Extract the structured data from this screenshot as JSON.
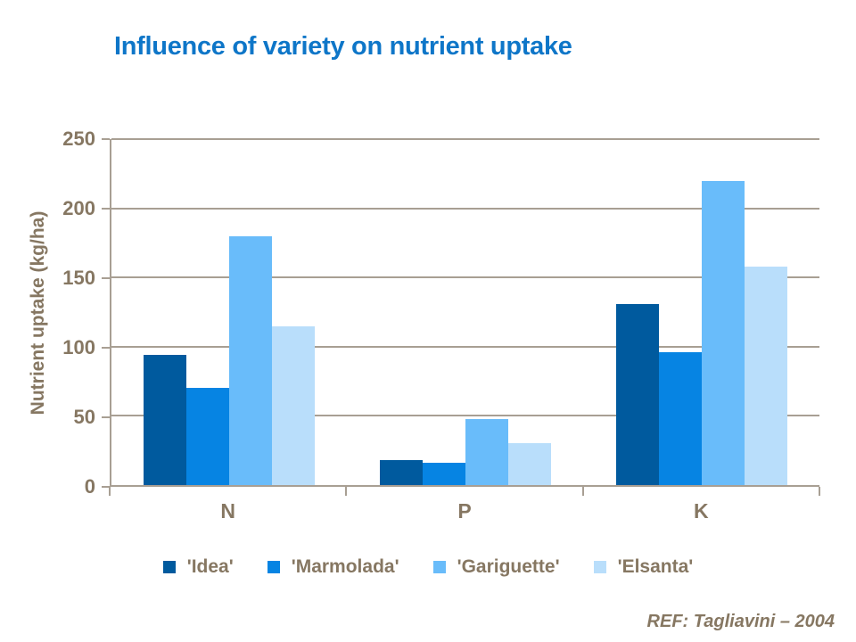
{
  "slide": {
    "title": "Influence of variety on nutrient uptake",
    "reference": "REF: Tagliavini – 2004"
  },
  "chart_data": {
    "type": "bar",
    "title": "Influence of variety on nutrient uptake",
    "categories": [
      "N",
      "P",
      "K"
    ],
    "series": [
      {
        "name": "'Idea'",
        "color": "#005A9E",
        "values": [
          94,
          18,
          131
        ]
      },
      {
        "name": "'Marmolada'",
        "color": "#0684E3",
        "values": [
          70,
          16,
          96
        ]
      },
      {
        "name": "'Gariguette'",
        "color": "#69BCFA",
        "values": [
          180,
          48,
          220
        ]
      },
      {
        "name": "'Elsanta'",
        "color": "#B9DEFB",
        "values": [
          115,
          30,
          158
        ]
      }
    ],
    "xlabel": "",
    "ylabel": "Nutrient uptake (kg/ha)",
    "ylim": [
      0,
      250
    ],
    "yticks": [
      0,
      50,
      100,
      150,
      200,
      250
    ],
    "grid": true,
    "legend_position": "bottom"
  },
  "theme": {
    "background": "#FFFFFF",
    "title_color": "#0E76C8",
    "axis_text_color": "#867762",
    "grid_color": "#A89F93"
  }
}
